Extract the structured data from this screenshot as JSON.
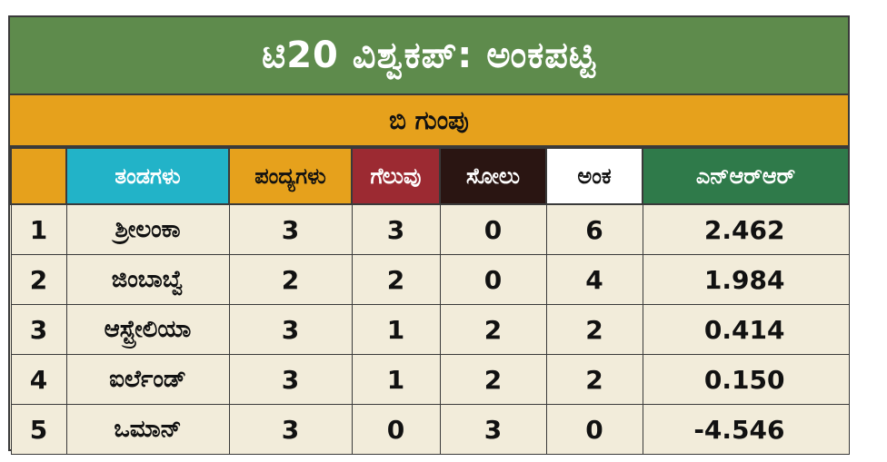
{
  "title": "ಟಿ20 ವಿಶ್ವಕಪ್: ಅಂಕಪಟ್ಟಿ",
  "group": "ಬಿ ಗುಂಪು",
  "headers": {
    "rank": "",
    "team": "ತಂಡಗಳು",
    "played": "ಪಂದ್ಯಗಳು",
    "won": "ಗೆಲುವು",
    "lost": "ಸೋಲು",
    "points": "ಅಂಕ",
    "nrr": "ಎನ್‌ಆರ್‌ಆರ್"
  },
  "rows": [
    {
      "rank": "1",
      "team": "ಶ್ರೀಲಂಕಾ",
      "played": "3",
      "won": "3",
      "lost": "0",
      "points": "6",
      "nrr": "2.462"
    },
    {
      "rank": "2",
      "team": "ಜಿಂಬಾಬ್ವೆ",
      "played": "2",
      "won": "2",
      "lost": "0",
      "points": "4",
      "nrr": "1.984"
    },
    {
      "rank": "3",
      "team": "ಆಸ್ಟ್ರೇಲಿಯಾ",
      "played": "3",
      "won": "1",
      "lost": "2",
      "points": "2",
      "nrr": "0.414"
    },
    {
      "rank": "4",
      "team": "ಐರ್ಲೆಂಡ್",
      "played": "3",
      "won": "1",
      "lost": "2",
      "points": "2",
      "nrr": "0.150"
    },
    {
      "rank": "5",
      "team": "ಒಮಾನ್",
      "played": "3",
      "won": "0",
      "lost": "3",
      "points": "0",
      "nrr": "-4.546"
    }
  ],
  "colors": {
    "title_bg": "#5e8b4c",
    "group_bg": "#e6a11c",
    "team_header_bg": "#22b3c8",
    "won_header_bg": "#9c2a32",
    "lost_header_bg": "#2a1512",
    "points_header_bg": "#ffffff",
    "nrr_header_bg": "#2f7a4a",
    "body_bg": "#f2ecda"
  }
}
